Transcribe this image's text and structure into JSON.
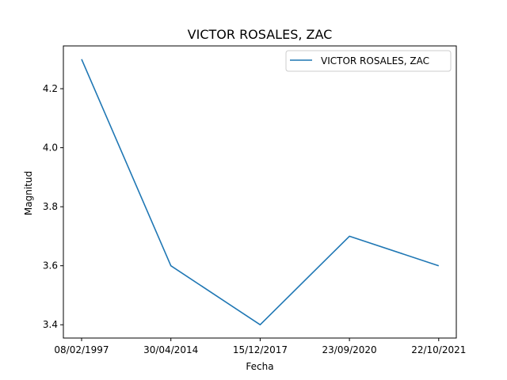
{
  "chart_data": {
    "type": "line",
    "title": "VICTOR ROSALES, ZAC",
    "xlabel": "Fecha",
    "ylabel": "Magnitud",
    "categories": [
      "08/02/1997",
      "30/04/2014",
      "15/12/2017",
      "23/09/2020",
      "22/10/2021"
    ],
    "series": [
      {
        "name": "VICTOR ROSALES, ZAC",
        "values": [
          4.3,
          3.6,
          3.4,
          3.7,
          3.6
        ],
        "color": "#1f77b4"
      }
    ],
    "yticks": [
      "3.4",
      "3.6",
      "3.8",
      "4.0",
      "4.2"
    ],
    "ylim": [
      3.355,
      4.345
    ],
    "grid": false,
    "legend": "top-right"
  }
}
